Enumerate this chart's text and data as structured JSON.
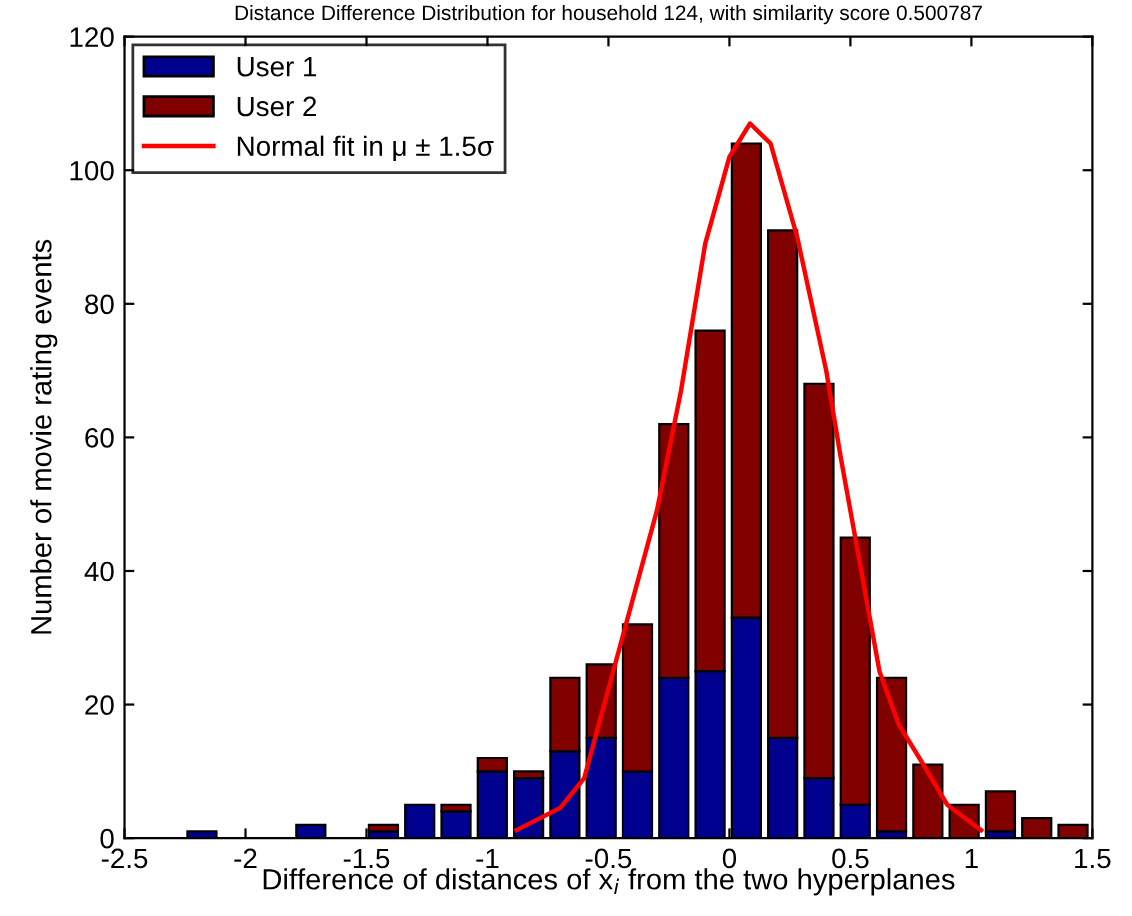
{
  "chart_data": {
    "type": "bar",
    "stacked": true,
    "title": "Distance Difference Distribution for household 124, with similarity score 0.500787",
    "xlabel": "Difference of distances of x$_{i}$ from the two hyperplanes",
    "ylabel": "Number of movie rating events",
    "x": [
      -2.18,
      -1.73,
      -1.43,
      -1.28,
      -1.13,
      -0.98,
      -0.83,
      -0.68,
      -0.53,
      -0.38,
      -0.23,
      -0.08,
      0.07,
      0.22,
      0.37,
      0.52,
      0.67,
      0.82,
      0.97,
      1.12,
      1.27,
      1.42
    ],
    "series": [
      {
        "name": "User 1",
        "color": "#00008f",
        "values": [
          1,
          2,
          1,
          5,
          4,
          10,
          9,
          13,
          15,
          10,
          24,
          25,
          33,
          15,
          9,
          5,
          1,
          0,
          0,
          1,
          0,
          0
        ]
      },
      {
        "name": "User 2",
        "color": "#800000",
        "values": [
          0,
          0,
          1,
          0,
          1,
          2,
          1,
          11,
          11,
          22,
          38,
          51,
          71,
          76,
          59,
          40,
          23,
          11,
          5,
          6,
          3,
          2
        ]
      },
      {
        "name": "Normal fit in μ ± 1.5σ",
        "type": "line",
        "color": "#ff0000",
        "x": [
          -0.88,
          -0.7,
          -0.6,
          -0.45,
          -0.3,
          -0.2,
          -0.1,
          0.0,
          0.085,
          0.17,
          0.28,
          0.4,
          0.46,
          0.52,
          0.62,
          0.7,
          0.79,
          0.9,
          1.04
        ],
        "values": [
          1.2,
          4.5,
          9,
          29,
          49,
          67,
          89,
          102,
          107,
          104,
          90,
          70,
          57,
          45,
          25,
          17,
          11.7,
          5,
          1.2
        ]
      }
    ],
    "xlim": [
      -2.5,
      1.5
    ],
    "xticks": [
      -2.5,
      -2,
      -1.5,
      -1,
      -0.5,
      0,
      0.5,
      1,
      1.5
    ],
    "ylim": [
      0,
      120
    ],
    "yticks": [
      0,
      20,
      40,
      60,
      80,
      100,
      120
    ],
    "grid": false,
    "legend": "top left"
  }
}
